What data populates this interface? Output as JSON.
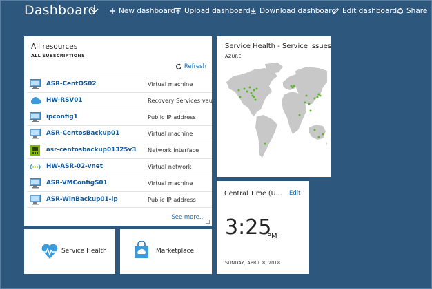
{
  "header": {
    "title": "Dashboard",
    "actions": [
      {
        "label": "New dashboard",
        "icon": "plus-icon"
      },
      {
        "label": "Upload dashboard",
        "icon": "upload-icon"
      },
      {
        "label": "Download dashboard",
        "icon": "download-icon"
      },
      {
        "label": "Edit dashboard",
        "icon": "pencil-icon"
      },
      {
        "label": "Share",
        "icon": "share-icon"
      }
    ]
  },
  "resources": {
    "title": "All resources",
    "subtitle": "ALL SUBSCRIPTIONS",
    "refresh_label": "Refresh",
    "see_more_label": "See more...",
    "items": [
      {
        "name": "ASR-CentOS02",
        "type": "Virtual machine",
        "icon": "virtual-machine-icon"
      },
      {
        "name": "HW-RSV01",
        "type": "Recovery Services vault",
        "icon": "recovery-vault-icon"
      },
      {
        "name": "ipconfig1",
        "type": "Public IP address",
        "icon": "public-ip-icon"
      },
      {
        "name": "ASR-CentosBackup01",
        "type": "Virtual machine",
        "icon": "virtual-machine-icon"
      },
      {
        "name": "asr-centosbackup01325v3",
        "type": "Network interface",
        "icon": "network-interface-icon"
      },
      {
        "name": "HW-ASR-02-vnet",
        "type": "Virtual network",
        "icon": "virtual-network-icon"
      },
      {
        "name": "ASR-VMConfigS01",
        "type": "Virtual machine",
        "icon": "virtual-machine-icon"
      },
      {
        "name": "ASR-WinBackup01-ip",
        "type": "Public IP address",
        "icon": "public-ip-icon"
      }
    ]
  },
  "service_health": {
    "title": "Service Health - Service issues",
    "subtitle": "AZURE",
    "status_color": "#5cb82e"
  },
  "clock": {
    "title": "Central Time (U...",
    "edit_label": "Edit",
    "time": "3:25",
    "ampm": "PM",
    "date": "SUNDAY, APRIL 8, 2018"
  },
  "tiles": {
    "service_health_label": "Service Health",
    "marketplace_label": "Marketplace"
  },
  "colors": {
    "background": "#2e577d",
    "link": "#0f6ab5",
    "map_land": "#c8c8c8"
  }
}
